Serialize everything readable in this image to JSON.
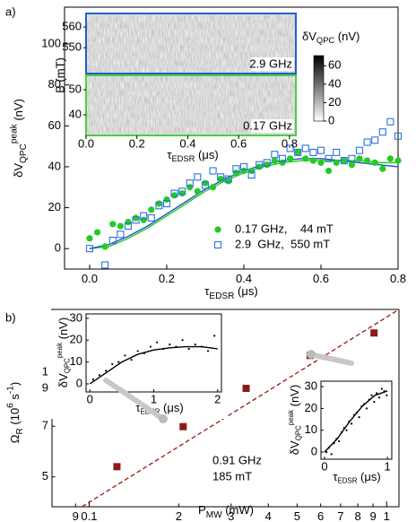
{
  "chart_data": [
    {
      "type": "scatter",
      "label": "a)",
      "xlabel": [
        "τ",
        "EDSR",
        " (μs)"
      ],
      "ylabel": [
        "δV",
        "QPC",
        "peak",
        " (nV)"
      ],
      "xlim": [
        -0.065,
        0.8
      ],
      "xticks": [
        {
          "value": 0,
          "label": "0.0"
        },
        0.2,
        0.4,
        0.6,
        0.8
      ],
      "ylim": [
        -10,
        118
      ],
      "yticks": [
        0,
        20,
        40,
        60,
        80,
        100
      ],
      "legend": "lower right",
      "series": [
        {
          "name": "0.17 GHz,    44 mT",
          "color": "#22cc22",
          "marker": "circle",
          "x": [
            0.0,
            0.02,
            0.04,
            0.06,
            0.08,
            0.1,
            0.12,
            0.14,
            0.16,
            0.18,
            0.2,
            0.22,
            0.24,
            0.26,
            0.28,
            0.3,
            0.32,
            0.34,
            0.36,
            0.38,
            0.4,
            0.42,
            0.44,
            0.46,
            0.48,
            0.5,
            0.52,
            0.54,
            0.56,
            0.58,
            0.6,
            0.62,
            0.64,
            0.66,
            0.68,
            0.7,
            0.72,
            0.74,
            0.76,
            0.78,
            0.8
          ],
          "values": [
            5,
            8,
            1,
            12,
            11,
            13,
            15,
            14,
            19,
            22,
            24,
            26,
            27,
            30,
            28,
            32,
            30,
            34,
            33,
            37,
            38,
            38,
            40,
            41,
            43,
            42,
            44,
            47,
            44,
            43,
            42,
            38,
            42,
            43,
            41,
            44,
            43,
            42,
            39,
            44,
            43
          ]
        },
        {
          "name": "2.9  GHz,  550 mT",
          "color": "#2f6fe0",
          "marker": "square",
          "x": [
            0.0,
            0.04,
            0.06,
            0.08,
            0.1,
            0.12,
            0.14,
            0.16,
            0.18,
            0.2,
            0.22,
            0.24,
            0.26,
            0.28,
            0.3,
            0.32,
            0.34,
            0.36,
            0.38,
            0.4,
            0.42,
            0.44,
            0.46,
            0.48,
            0.5,
            0.52,
            0.54,
            0.56,
            0.58,
            0.6,
            0.62,
            0.64,
            0.66,
            0.68,
            0.7,
            0.72,
            0.74,
            0.76,
            0.78,
            0.8
          ],
          "values": [
            0,
            -8,
            4,
            7,
            11,
            14,
            16,
            15,
            21,
            22,
            27,
            28,
            32,
            35,
            31,
            38,
            35,
            34,
            39,
            40,
            36,
            41,
            42,
            46,
            44,
            49,
            47,
            49,
            47,
            48,
            44,
            47,
            43,
            44,
            48,
            52,
            53,
            57,
            62,
            55
          ]
        }
      ],
      "fits": [
        {
          "color": "#22cc22",
          "x": [
            0,
            0.05,
            0.1,
            0.15,
            0.2,
            0.25,
            0.3,
            0.35,
            0.4,
            0.45,
            0.5,
            0.55,
            0.6,
            0.65,
            0.7,
            0.75,
            0.8
          ],
          "values": [
            0,
            1,
            5,
            10,
            16,
            22,
            28,
            33,
            37,
            40,
            42,
            43,
            43,
            43,
            43,
            42,
            42
          ]
        },
        {
          "color": "#1f4fd0",
          "x": [
            0,
            0.05,
            0.1,
            0.15,
            0.2,
            0.25,
            0.3,
            0.35,
            0.4,
            0.45,
            0.5,
            0.55,
            0.6,
            0.65,
            0.7,
            0.75,
            0.8
          ],
          "values": [
            0,
            2,
            6,
            11,
            17,
            23,
            29,
            34,
            38,
            41,
            43,
            44,
            44,
            43,
            42,
            41,
            40
          ]
        }
      ]
    },
    {
      "type": "heatmap",
      "xlabel": [
        "τ",
        "EDSR",
        " (μs)"
      ],
      "ylabel": "B (mT)",
      "xlim": [
        0,
        0.825
      ],
      "xticks": [
        {
          "value": 0,
          "label": "0.0"
        },
        0.2,
        0.4,
        0.6,
        0.8
      ],
      "panels": [
        {
          "label": "2.9 GHz",
          "color": "#2060d0",
          "ylim": [
            537.6,
            566.5
          ],
          "yticks": [
            550,
            560
          ]
        },
        {
          "label": "0.17 GHz",
          "color": "#4ccf3c",
          "ylim": [
            31.8,
            55.7
          ],
          "yticks": [
            40,
            50
          ]
        }
      ],
      "colorbar": {
        "label": [
          "δV",
          "QPC",
          " (nV)"
        ],
        "lim": [
          0,
          71
        ],
        "ticks": [
          0,
          20,
          40,
          60
        ]
      }
    },
    {
      "type": "scatter",
      "label": "b)",
      "xlog": true,
      "ylog": true,
      "xlabel": [
        "P",
        "MW",
        " (mW)"
      ],
      "ylabel": [
        "Ω",
        "R",
        " (10",
        "6",
        " s",
        "-1",
        ")"
      ],
      "xlim": [
        0.075,
        1.1
      ],
      "xticks": [
        {
          "value": 0.09,
          "label": "9"
        },
        0.1,
        {
          "value": 0.2,
          "label": "2"
        },
        {
          "value": 0.3,
          "label": "3"
        },
        {
          "value": 0.4,
          "label": "4"
        },
        {
          "value": 0.5,
          "label": "5"
        },
        {
          "value": 0.6,
          "label": "6"
        },
        {
          "value": 0.7,
          "label": "7"
        },
        {
          "value": 0.8,
          "label": "8"
        },
        {
          "value": 0.9,
          "label": "9"
        },
        1
      ],
      "ylim": [
        4.1,
        15.2
      ],
      "yticks": [
        5,
        7,
        9,
        {
          "value": 10,
          "label": "1"
        }
      ],
      "annotations": [
        "0.91 GHz",
        "185 mT"
      ],
      "series": [
        {
          "color": "#8b1a1a",
          "marker": "filled-square",
          "x": [
            0.124,
            0.207,
            0.337,
            0.553,
            0.907
          ],
          "values": [
            5.35,
            6.98,
            9,
            11.2,
            13.0
          ]
        }
      ],
      "fits": [
        {
          "color": "#a0251d",
          "dashed": true,
          "x": [
            0.0946,
            1.1
          ],
          "values": [
            4.1,
            15.2
          ]
        }
      ]
    },
    {
      "type": "scatter",
      "xlabel": [
        "τ",
        "EDSR",
        " (μs)"
      ],
      "ylabel": [
        "δV",
        "QPC",
        "peak",
        " (nV)"
      ],
      "xlim": [
        -0.06,
        2.06
      ],
      "xticks": [
        0,
        1,
        2
      ],
      "ylim": [
        -3.7,
        32
      ],
      "yticks": [
        0,
        10,
        20,
        30
      ],
      "series": [
        {
          "color": "#000000",
          "marker": "dot",
          "x": [
            0.05,
            0.15,
            0.25,
            0.35,
            0.45,
            0.55,
            0.65,
            0.75,
            0.85,
            0.95,
            1.05,
            1.15,
            1.25,
            1.35,
            1.45,
            1.55,
            1.65,
            1.75,
            1.85,
            1.95
          ],
          "values": [
            2,
            4,
            6,
            9,
            10,
            13,
            11,
            15,
            14,
            17,
            19,
            16,
            18,
            17,
            20,
            16,
            18,
            17,
            15,
            22
          ]
        }
      ],
      "fits": [
        {
          "color": "#000000",
          "x": [
            0,
            0.25,
            0.5,
            0.75,
            1,
            1.25,
            1.5,
            1.75,
            2
          ],
          "values": [
            0,
            5,
            10,
            13.5,
            15.5,
            16.5,
            17,
            17,
            16
          ]
        }
      ]
    },
    {
      "type": "scatter",
      "xlabel": [
        "τ",
        "EDSR",
        " (μs)"
      ],
      "ylabel": [
        "δV",
        "QPC",
        "peak",
        " (nV)"
      ],
      "xlim": [
        -0.057,
        1.07
      ],
      "xticks": [
        0,
        1
      ],
      "ylim": [
        -3.3,
        32.5
      ],
      "yticks": [
        0,
        10,
        20,
        30
      ],
      "series": [
        {
          "color": "#000000",
          "marker": "dot",
          "x": [
            0.03,
            0.07,
            0.11,
            0.15,
            0.19,
            0.23,
            0.27,
            0.31,
            0.35,
            0.39,
            0.43,
            0.47,
            0.51,
            0.55,
            0.59,
            0.63,
            0.67,
            0.71,
            0.75,
            0.79,
            0.83,
            0.87,
            0.91,
            0.95,
            0.99
          ],
          "values": [
            0,
            2,
            -1,
            4,
            6,
            5,
            9,
            11,
            10,
            14,
            13,
            17,
            18,
            16,
            21,
            22,
            20,
            24,
            26,
            23,
            27,
            25,
            29,
            28,
            26
          ]
        }
      ],
      "fits": [
        {
          "color": "#000000",
          "x": [
            0,
            0.2,
            0.4,
            0.6,
            0.8,
            1.0
          ],
          "values": [
            0,
            6,
            14,
            21,
            26,
            28
          ]
        }
      ]
    }
  ]
}
